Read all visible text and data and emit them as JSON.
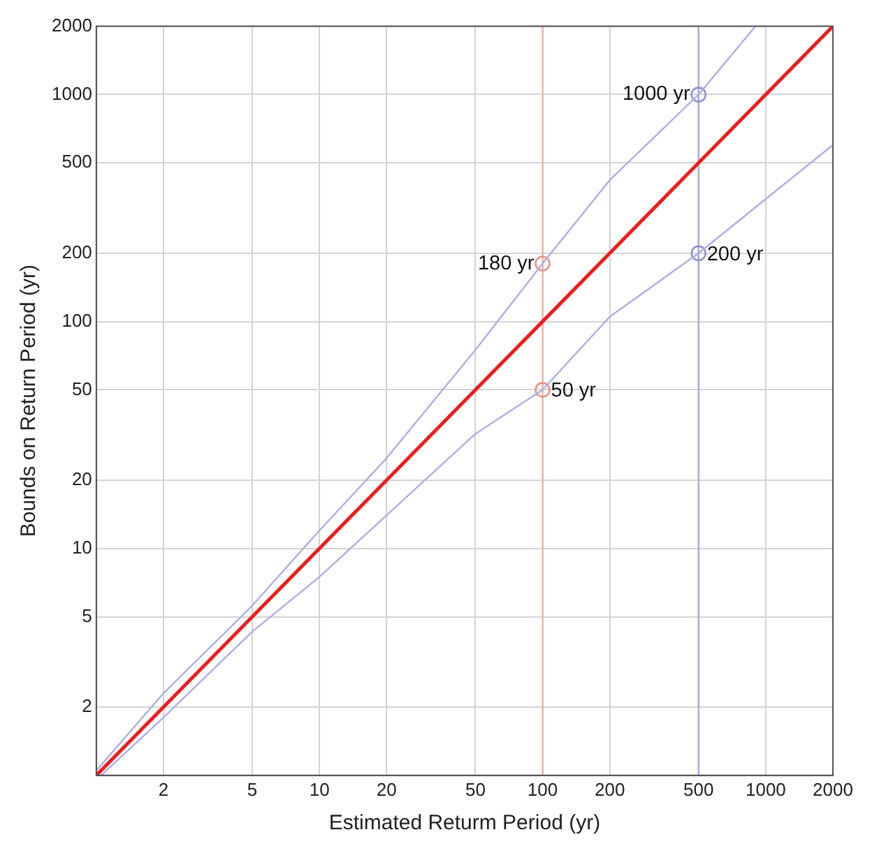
{
  "chart_data": {
    "type": "line",
    "xlabel": "Estimated Returm Period (yr)",
    "ylabel": "Bounds on Return Period (yr)",
    "series": [
      {
        "color": "#ee1c1c",
        "x": [
          1,
          2000
        ],
        "values": [
          1,
          2000
        ]
      },
      {
        "color": "#a9b0e4",
        "x": [
          1,
          2,
          5,
          10,
          20,
          50,
          100,
          200,
          500,
          900
        ],
        "values": [
          1.05,
          2.3,
          5.6,
          12,
          25,
          75,
          180,
          420,
          1000,
          2000
        ]
      },
      {
        "color": "#a9b0e4",
        "x": [
          1.05,
          2,
          5,
          10,
          20,
          50,
          100,
          200,
          500,
          2000
        ],
        "values": [
          1,
          1.8,
          4.3,
          7.5,
          14,
          32,
          50,
          105,
          200,
          600
        ]
      },
      {
        "type": "scatter",
        "marker": "circle",
        "color": "#f08a7a",
        "x": [
          100,
          100
        ],
        "values": [
          180,
          50
        ],
        "value_labels": [
          "180 yr",
          "50 yr"
        ]
      },
      {
        "type": "scatter",
        "marker": "circle",
        "color": "#8c8cd0",
        "x": [
          500,
          500
        ],
        "values": [
          1000,
          200
        ],
        "value_labels": [
          "1000 yr",
          "200 yr"
        ]
      }
    ],
    "marker": "none",
    "log": "xy",
    "xlim": [
      1,
      2000
    ],
    "ylim": [
      1,
      2000
    ],
    "xticks": [
      2,
      5,
      10,
      20,
      50,
      100,
      200,
      500,
      1000,
      2000
    ],
    "yticks": [
      2,
      5,
      10,
      20,
      50,
      100,
      200,
      500,
      1000,
      2000
    ],
    "grid": true,
    "legend": false,
    "ref_lines": [
      {
        "axis": "x",
        "value": 100,
        "color": "#f5b0a0"
      },
      {
        "axis": "x",
        "value": 500,
        "color": "#a8a8dc"
      }
    ]
  }
}
